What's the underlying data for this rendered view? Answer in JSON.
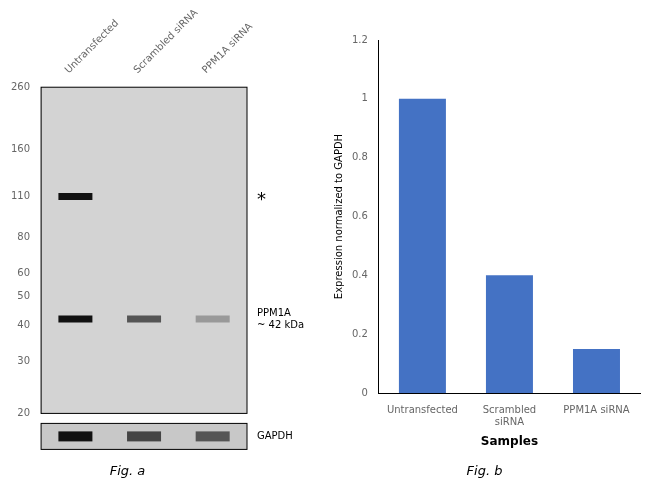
{
  "chart_data": [
    {
      "type": "blot",
      "title": "Fig. a",
      "categories": [
        "Untransfected",
        "Scrambled siRNA",
        "PPM1A siRNA"
      ],
      "log": "y",
      "ylim": [
        20,
        260
      ],
      "yticks": [
        260,
        160,
        110,
        80,
        60,
        50,
        40,
        30,
        20
      ],
      "color": "#d3d3d3",
      "grid": false,
      "series": [
        {
          "name": "PPM1A\n~ 42 kDa",
          "values": [
            42,
            42,
            42
          ],
          "colors": [
            "#111111",
            "#555555",
            "#999999"
          ]
        },
        {
          "name": "*",
          "values": [
            110,
            null,
            null
          ],
          "color": "#111111"
        },
        {
          "name": "GAPDH",
          "type": "strip",
          "color": "#c8c8c8",
          "colors": [
            "#111111",
            "#444444",
            "#555555"
          ]
        }
      ]
    },
    {
      "type": "bar",
      "title": "Fig. b",
      "categories": [
        "Untransfected",
        "Scrambled\nsiRNA",
        "PPM1A siRNA"
      ],
      "values": [
        1.0,
        0.4,
        0.15
      ],
      "color": "#4472C4",
      "xlabel": "Samples",
      "ylabel": "Expression normalized to GAPDH",
      "ylim": [
        0,
        1.2
      ],
      "yticks": [
        0,
        0.2,
        0.4,
        0.6,
        0.8,
        1,
        1.2
      ],
      "grid": false
    }
  ]
}
